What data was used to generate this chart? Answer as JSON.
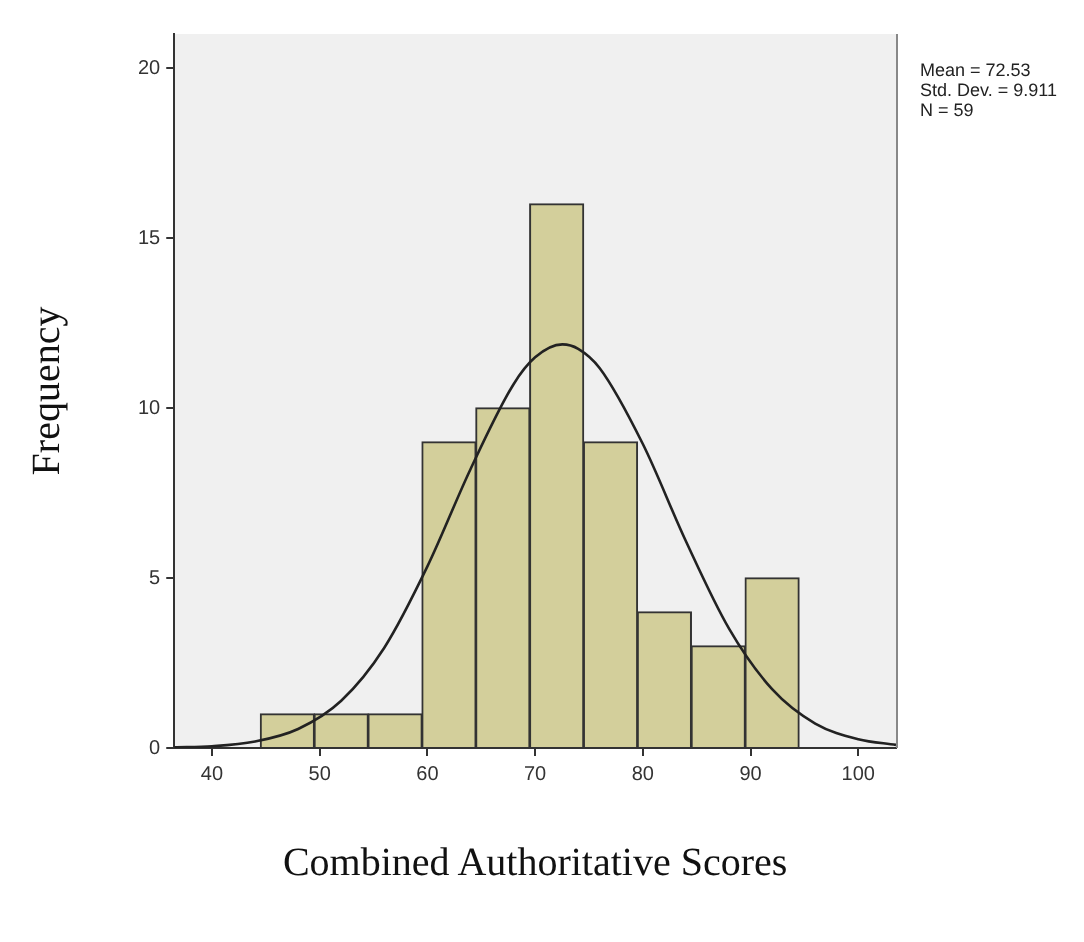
{
  "chart_data": {
    "type": "histogram",
    "xlabel": "Combined Authoritative Scores",
    "ylabel": "Frequency",
    "bins": [
      44.5,
      49.5,
      54.5,
      59.5,
      64.5,
      69.5,
      74.5,
      79.5,
      84.5,
      89.5,
      94.5
    ],
    "values": [
      1,
      1,
      1,
      9,
      10,
      16,
      9,
      4,
      3,
      5
    ],
    "color": "#d3cf9b",
    "series": [
      {
        "type": "line",
        "color": "#222222",
        "x": [
          36.5,
          40,
          44,
          48,
          52,
          56,
          60,
          64,
          68,
          70,
          72.53,
          74,
          76,
          80,
          84,
          88,
          92,
          96,
          100,
          103.5
        ],
        "values": [
          0.02,
          0.05,
          0.19,
          0.56,
          1.39,
          2.95,
          5.34,
          8.2,
          10.7,
          11.49,
          11.87,
          11.74,
          11.17,
          8.94,
          6.08,
          3.51,
          1.73,
          0.72,
          0.26,
          0.09
        ]
      }
    ],
    "xlim": [
      36.5,
      103.5
    ],
    "xticks": [
      40,
      50,
      60,
      70,
      80,
      90,
      100
    ],
    "ylim": [
      0,
      21
    ],
    "yticks": [
      0,
      5,
      10,
      15,
      20
    ],
    "grid": false,
    "legend": false,
    "annotations": [
      "Mean = 72.53",
      "Std. Dev. = 9.911",
      "N = 59"
    ]
  }
}
